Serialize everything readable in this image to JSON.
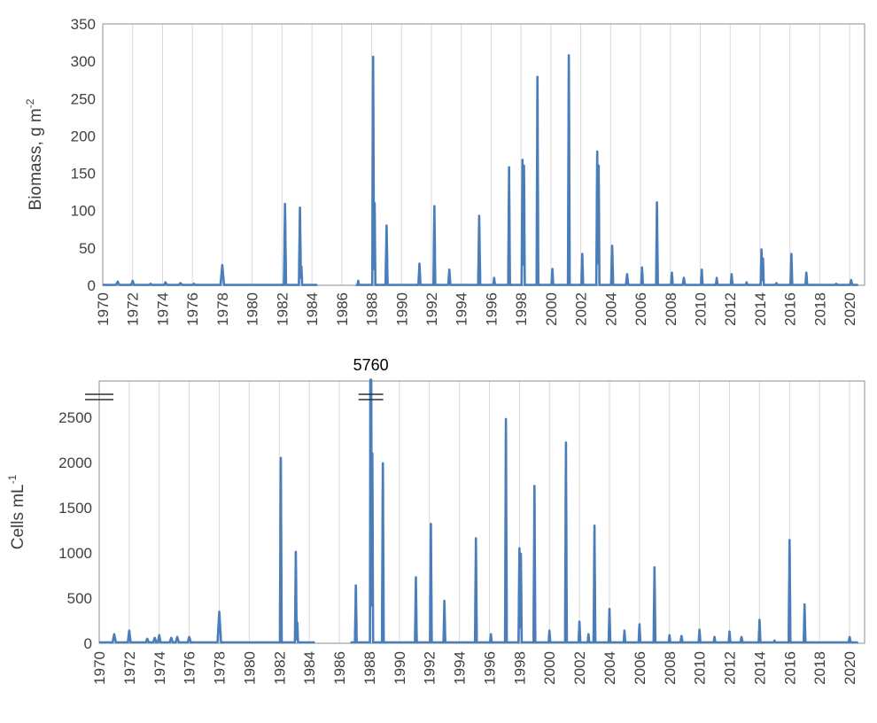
{
  "colors": {
    "series": "#4a7ebb",
    "grid": "#d9d9d9",
    "frame": "#8c8c8c",
    "text": "#404040"
  },
  "chart_data": [
    {
      "type": "line",
      "title": "",
      "xlabel": "",
      "ylabel": "Biomass, g m",
      "ylabel_superscript": "-2",
      "xlim": [
        1970,
        2021
      ],
      "ylim": [
        0,
        350
      ],
      "ytick_labels": [
        "0",
        "50",
        "100",
        "150",
        "200",
        "250",
        "300",
        "350"
      ],
      "xtick_labels": [
        "1970",
        "1972",
        "1974",
        "1976",
        "1978",
        "1980",
        "1982",
        "1984",
        "1986",
        "1988",
        "1990",
        "1992",
        "1994",
        "1996",
        "1998",
        "2000",
        "2002",
        "2004",
        "2006",
        "2008",
        "2010",
        "2012",
        "2014",
        "2016",
        "2018",
        "2020"
      ],
      "grid": true,
      "series": [
        {
          "baseline": 0.5,
          "gap": [
            1984.3,
            1987.0
          ],
          "peaks": [
            {
              "x": 1971.0,
              "y": 5,
              "w": 0.12
            },
            {
              "x": 1972.0,
              "y": 6,
              "w": 0.1
            },
            {
              "x": 1973.2,
              "y": 2,
              "w": 0.1
            },
            {
              "x": 1974.2,
              "y": 4,
              "w": 0.1
            },
            {
              "x": 1975.2,
              "y": 3,
              "w": 0.12
            },
            {
              "x": 1976.1,
              "y": 2,
              "w": 0.1
            },
            {
              "x": 1978.0,
              "y": 27,
              "w": 0.12
            },
            {
              "x": 1982.2,
              "y": 109,
              "w": 0.07
            },
            {
              "x": 1983.2,
              "y": 104,
              "w": 0.07
            },
            {
              "x": 1983.3,
              "y": 25,
              "w": 0.05
            },
            {
              "x": 1987.1,
              "y": 6,
              "w": 0.05
            },
            {
              "x": 1988.1,
              "y": 306,
              "w": 0.06
            },
            {
              "x": 1988.2,
              "y": 110,
              "w": 0.05
            },
            {
              "x": 1989.0,
              "y": 80,
              "w": 0.07
            },
            {
              "x": 1991.2,
              "y": 29,
              "w": 0.07
            },
            {
              "x": 1992.2,
              "y": 106,
              "w": 0.06
            },
            {
              "x": 1993.2,
              "y": 21,
              "w": 0.07
            },
            {
              "x": 1995.2,
              "y": 93,
              "w": 0.07
            },
            {
              "x": 1996.2,
              "y": 10,
              "w": 0.06
            },
            {
              "x": 1997.2,
              "y": 158,
              "w": 0.06
            },
            {
              "x": 1998.1,
              "y": 168,
              "w": 0.06
            },
            {
              "x": 1998.2,
              "y": 160,
              "w": 0.05
            },
            {
              "x": 1999.1,
              "y": 279,
              "w": 0.06
            },
            {
              "x": 2000.1,
              "y": 22,
              "w": 0.06
            },
            {
              "x": 2001.2,
              "y": 308,
              "w": 0.06
            },
            {
              "x": 2002.1,
              "y": 42,
              "w": 0.06
            },
            {
              "x": 2003.1,
              "y": 179,
              "w": 0.06
            },
            {
              "x": 2003.2,
              "y": 160,
              "w": 0.05
            },
            {
              "x": 2004.1,
              "y": 53,
              "w": 0.07
            },
            {
              "x": 2005.1,
              "y": 15,
              "w": 0.08
            },
            {
              "x": 2006.1,
              "y": 24,
              "w": 0.06
            },
            {
              "x": 2007.1,
              "y": 111,
              "w": 0.06
            },
            {
              "x": 2008.1,
              "y": 17,
              "w": 0.06
            },
            {
              "x": 2008.9,
              "y": 10,
              "w": 0.08
            },
            {
              "x": 2010.1,
              "y": 21,
              "w": 0.06
            },
            {
              "x": 2011.1,
              "y": 10,
              "w": 0.06
            },
            {
              "x": 2012.1,
              "y": 15,
              "w": 0.06
            },
            {
              "x": 2013.1,
              "y": 4,
              "w": 0.06
            },
            {
              "x": 2014.1,
              "y": 48,
              "w": 0.06
            },
            {
              "x": 2014.2,
              "y": 36,
              "w": 0.05
            },
            {
              "x": 2015.1,
              "y": 3,
              "w": 0.06
            },
            {
              "x": 2016.1,
              "y": 42,
              "w": 0.06
            },
            {
              "x": 2017.1,
              "y": 17,
              "w": 0.06
            },
            {
              "x": 2019.1,
              "y": 2,
              "w": 0.06
            },
            {
              "x": 2020.1,
              "y": 7,
              "w": 0.08
            }
          ]
        }
      ]
    },
    {
      "type": "line",
      "title": "",
      "xlabel": "",
      "ylabel": "Cells mL",
      "ylabel_superscript": "-1",
      "xlim": [
        1970,
        2021
      ],
      "ylim": [
        0,
        2900
      ],
      "ytick_labels": [
        "0",
        "500",
        "1000",
        "1500",
        "2000",
        "2500"
      ],
      "xtick_labels": [
        "1970",
        "1972",
        "1974",
        "1976",
        "1978",
        "1980",
        "1982",
        "1984",
        "1986",
        "1988",
        "1990",
        "1992",
        "1994",
        "1996",
        "1998",
        "2000",
        "2002",
        "2004",
        "2006",
        "2008",
        "2010",
        "2012",
        "2014",
        "2016",
        "2018",
        "2020"
      ],
      "grid": true,
      "axis_break_label": "5760",
      "series": [
        {
          "baseline": 10,
          "gap": [
            1984.3,
            1986.8
          ],
          "peaks": [
            {
              "x": 1971.0,
              "y": 100,
              "w": 0.12
            },
            {
              "x": 1972.0,
              "y": 140,
              "w": 0.1
            },
            {
              "x": 1973.2,
              "y": 50,
              "w": 0.12
            },
            {
              "x": 1973.7,
              "y": 60,
              "w": 0.12
            },
            {
              "x": 1974.0,
              "y": 90,
              "w": 0.1
            },
            {
              "x": 1974.8,
              "y": 60,
              "w": 0.12
            },
            {
              "x": 1975.2,
              "y": 70,
              "w": 0.12
            },
            {
              "x": 1976.0,
              "y": 70,
              "w": 0.12
            },
            {
              "x": 1978.0,
              "y": 350,
              "w": 0.12
            },
            {
              "x": 1982.1,
              "y": 2050,
              "w": 0.06
            },
            {
              "x": 1983.1,
              "y": 1010,
              "w": 0.06
            },
            {
              "x": 1983.2,
              "y": 230,
              "w": 0.05
            },
            {
              "x": 1987.1,
              "y": 640,
              "w": 0.06
            },
            {
              "x": 1988.1,
              "y": 5760,
              "w": 0.06
            },
            {
              "x": 1988.2,
              "y": 2100,
              "w": 0.05
            },
            {
              "x": 1988.9,
              "y": 1990,
              "w": 0.06
            },
            {
              "x": 1991.1,
              "y": 730,
              "w": 0.06
            },
            {
              "x": 1992.1,
              "y": 1320,
              "w": 0.06
            },
            {
              "x": 1993.0,
              "y": 470,
              "w": 0.06
            },
            {
              "x": 1995.1,
              "y": 1160,
              "w": 0.06
            },
            {
              "x": 1996.1,
              "y": 100,
              "w": 0.06
            },
            {
              "x": 1997.1,
              "y": 2480,
              "w": 0.06
            },
            {
              "x": 1998.0,
              "y": 1050,
              "w": 0.06
            },
            {
              "x": 1998.1,
              "y": 990,
              "w": 0.05
            },
            {
              "x": 1999.0,
              "y": 1740,
              "w": 0.06
            },
            {
              "x": 2000.0,
              "y": 140,
              "w": 0.06
            },
            {
              "x": 2001.1,
              "y": 2220,
              "w": 0.06
            },
            {
              "x": 2002.0,
              "y": 240,
              "w": 0.06
            },
            {
              "x": 2002.6,
              "y": 100,
              "w": 0.06
            },
            {
              "x": 2003.0,
              "y": 1300,
              "w": 0.06
            },
            {
              "x": 2004.0,
              "y": 380,
              "w": 0.06
            },
            {
              "x": 2005.0,
              "y": 140,
              "w": 0.06
            },
            {
              "x": 2006.0,
              "y": 210,
              "w": 0.06
            },
            {
              "x": 2007.0,
              "y": 840,
              "w": 0.06
            },
            {
              "x": 2008.0,
              "y": 90,
              "w": 0.06
            },
            {
              "x": 2008.8,
              "y": 80,
              "w": 0.08
            },
            {
              "x": 2010.0,
              "y": 150,
              "w": 0.06
            },
            {
              "x": 2011.0,
              "y": 70,
              "w": 0.06
            },
            {
              "x": 2012.0,
              "y": 130,
              "w": 0.06
            },
            {
              "x": 2012.8,
              "y": 70,
              "w": 0.08
            },
            {
              "x": 2014.0,
              "y": 260,
              "w": 0.06
            },
            {
              "x": 2015.0,
              "y": 30,
              "w": 0.06
            },
            {
              "x": 2016.0,
              "y": 1140,
              "w": 0.06
            },
            {
              "x": 2017.0,
              "y": 430,
              "w": 0.06
            },
            {
              "x": 2020.0,
              "y": 70,
              "w": 0.08
            }
          ]
        }
      ]
    }
  ]
}
